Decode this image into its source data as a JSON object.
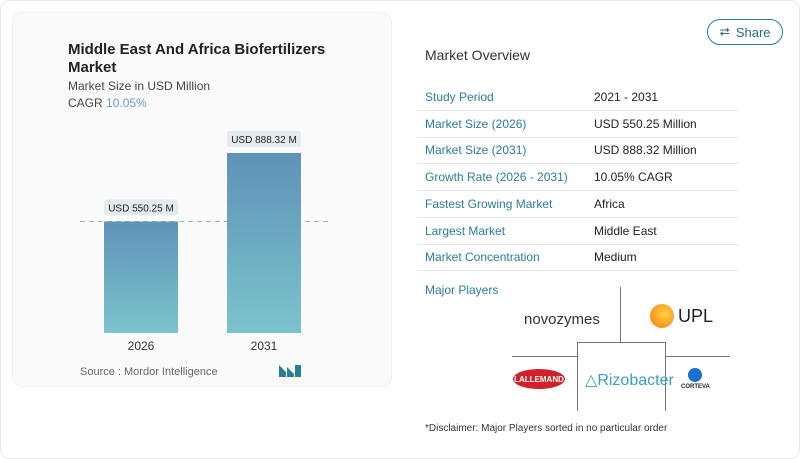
{
  "header": {
    "share_label": "Share",
    "share_icon": "share-icon"
  },
  "chart_data": {
    "type": "bar",
    "title": "Middle East And Africa Biofertilizers Market",
    "subtitle": "Market Size in USD Million",
    "cagr_label": "CAGR",
    "cagr_value": "10.05%",
    "categories": [
      "2026",
      "2031"
    ],
    "values": [
      550.25,
      888.32
    ],
    "data_labels": [
      "USD 550.25 M",
      "USD 888.32 M"
    ],
    "ylim": [
      0,
      1000
    ],
    "grid": false,
    "colors": {
      "bar_top": "#5f93b8",
      "bar_bottom": "#7cc3cc"
    },
    "source": "Source :  Mordor Intelligence"
  },
  "overview": {
    "title": "Market Overview",
    "rows": [
      {
        "label": "Study Period",
        "value": "2021 - 2031"
      },
      {
        "label": "Market Size (2026)",
        "value": "USD 550.25 Million"
      },
      {
        "label": "Market Size (2031)",
        "value": "USD 888.32 Million"
      },
      {
        "label": "Growth Rate (2026 - 2031)",
        "value": "10.05% CAGR"
      },
      {
        "label": "Fastest Growing Market",
        "value": "Africa"
      },
      {
        "label": "Largest Market",
        "value": "Middle East"
      },
      {
        "label": "Market Concentration",
        "value": "Medium"
      }
    ]
  },
  "players": {
    "title": "Major Players",
    "logos": [
      "novozymes",
      "UPL",
      "LALLEMAND",
      "Rizobacter",
      "CORTEVA"
    ]
  },
  "disclaimer": "*Disclaimer: Major Players sorted in no particular order"
}
